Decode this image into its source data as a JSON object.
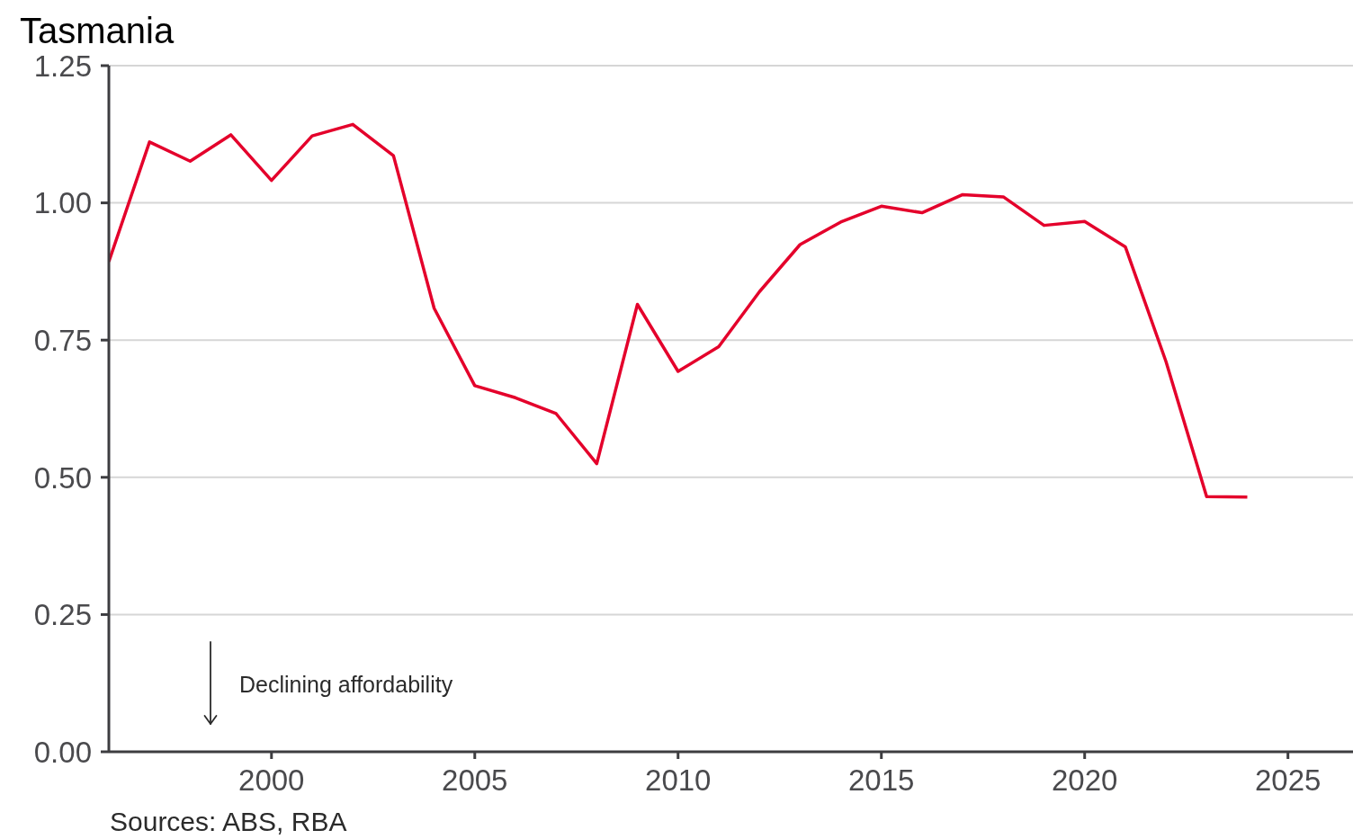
{
  "chart_data": {
    "type": "line",
    "title": "Tasmania",
    "annotations": [
      "Declining affordability",
      "Sources: ABS, RBA"
    ],
    "x": [
      1996,
      1997,
      1998,
      1999,
      2000,
      2001,
      2002,
      2003,
      2004,
      2005,
      2006,
      2007,
      2008,
      2009,
      2010,
      2011,
      2012,
      2013,
      2014,
      2015,
      2016,
      2017,
      2018,
      2019,
      2020,
      2021,
      2022,
      2023,
      2024
    ],
    "values": [
      0.893,
      1.111,
      1.076,
      1.124,
      1.041,
      1.122,
      1.143,
      1.086,
      0.808,
      0.667,
      0.645,
      0.616,
      0.525,
      0.815,
      0.693,
      0.738,
      0.838,
      0.924,
      0.965,
      0.994,
      0.982,
      1.015,
      1.011,
      0.959,
      0.966,
      0.92,
      0.711,
      0.465,
      0.464
    ],
    "color": "#e4002b",
    "xlim": [
      1996,
      2026.6
    ],
    "xticks": [
      2000,
      2005,
      2010,
      2015,
      2020,
      2025
    ],
    "ylim": [
      0,
      1.25
    ],
    "yticks": [
      {
        "value": 0,
        "label": "0.00"
      },
      0.25,
      {
        "value": 0.5,
        "label": "0.50"
      },
      0.75,
      {
        "value": 1,
        "label": "1.00"
      },
      1.25
    ],
    "grid": "y"
  }
}
